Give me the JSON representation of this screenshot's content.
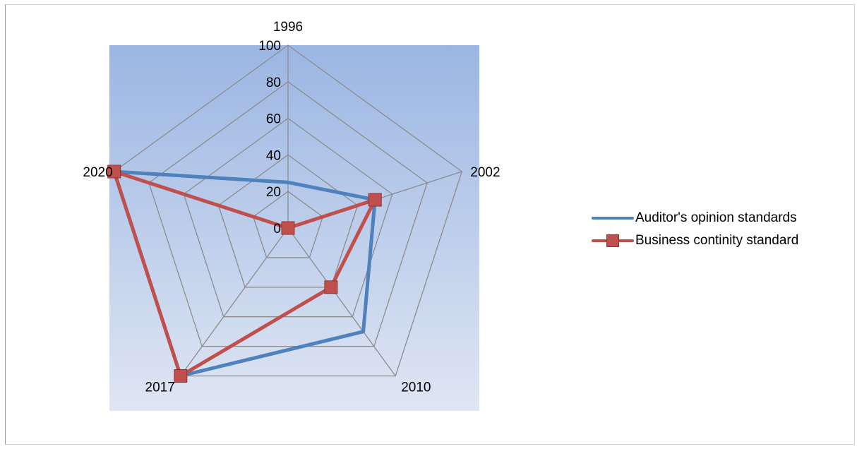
{
  "chart_data": {
    "type": "radar",
    "categories": [
      "1996",
      "2002",
      "2010",
      "2017",
      "2020"
    ],
    "radial_ticks": [
      "0",
      "20",
      "40",
      "60",
      "80",
      "100"
    ],
    "rmax": 100,
    "series": [
      {
        "name": "Auditor's opinion standards",
        "values": [
          25,
          50,
          70,
          100,
          100
        ],
        "color": "#4f81bd",
        "marker": "none"
      },
      {
        "name": "Business continity standard",
        "values": [
          0,
          50,
          40,
          100,
          100
        ],
        "color": "#c0504d",
        "marker": "square"
      }
    ],
    "legend_position": "right",
    "background": {
      "top_color": "#9bb6e3",
      "bottom_color": "#dfe6f3"
    },
    "grid_color": "#8c8c8c"
  }
}
